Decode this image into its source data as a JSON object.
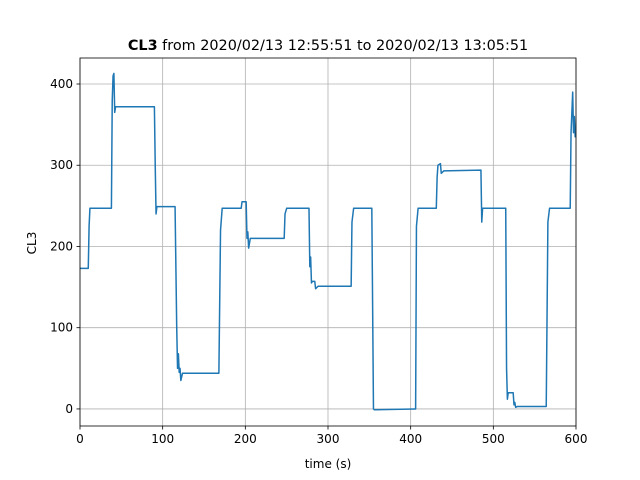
{
  "chart_data": {
    "type": "line",
    "title_bold": "CL3",
    "title": "from 2020/02/13 12:55:51 to 2020/02/13 13:05:51",
    "x_label": "time (s)",
    "y_label": "CL3",
    "x": [
      0,
      10,
      11,
      12,
      38,
      39,
      40,
      41,
      42,
      43,
      90,
      91,
      92,
      93,
      115,
      117,
      118,
      119,
      120,
      121,
      122,
      124,
      168,
      170,
      172,
      195,
      196,
      201,
      202,
      203,
      204,
      206,
      247,
      248,
      250,
      277,
      278,
      279,
      280,
      281,
      284,
      285,
      288,
      328,
      329,
      331,
      353,
      355,
      356,
      405,
      406,
      407,
      409,
      431,
      432,
      433,
      436,
      437,
      440,
      485,
      486,
      487,
      515,
      516,
      517,
      518,
      524,
      525,
      526,
      527,
      529,
      564,
      566,
      568,
      593,
      594,
      596,
      597,
      598,
      599,
      600
    ],
    "series": [
      {
        "name": "CL3",
        "color": "#1f77b4",
        "values": [
          173,
          173,
          225,
          247,
          247,
          380,
          410,
          413,
          365,
          372,
          372,
          300,
          240,
          249,
          249,
          100,
          50,
          68,
          45,
          50,
          35,
          44,
          44,
          220,
          247,
          247,
          255,
          255,
          210,
          218,
          198,
          210,
          210,
          240,
          247,
          247,
          175,
          187,
          155,
          157,
          157,
          148,
          151,
          151,
          230,
          247,
          247,
          0,
          -1,
          0,
          0,
          225,
          247,
          247,
          285,
          300,
          302,
          290,
          293,
          294,
          230,
          247,
          247,
          50,
          12,
          20,
          20,
          5,
          8,
          2,
          3,
          3,
          230,
          247,
          247,
          340,
          390,
          340,
          360,
          335,
          340
        ]
      }
    ],
    "xlim": [
      0,
      600
    ],
    "ylim": [
      -21,
      432
    ],
    "xticks": [
      0,
      100,
      200,
      300,
      400,
      500,
      600
    ],
    "yticks": [
      0,
      100,
      200,
      300,
      400
    ],
    "grid": true
  }
}
